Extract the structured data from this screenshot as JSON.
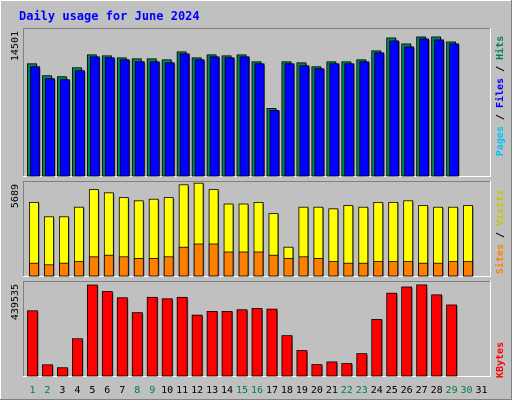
{
  "chart_data": {
    "type": "bar",
    "title": "Daily usage for June 2024",
    "x": [
      "1",
      "2",
      "3",
      "4",
      "5",
      "6",
      "7",
      "8",
      "9",
      "10",
      "11",
      "12",
      "13",
      "14",
      "15",
      "16",
      "17",
      "18",
      "19",
      "20",
      "21",
      "22",
      "23",
      "24",
      "25",
      "26",
      "27",
      "28",
      "29",
      "30",
      "31"
    ],
    "weekend_days": [
      "1",
      "2",
      "8",
      "9",
      "15",
      "16",
      "22",
      "23",
      "29",
      "30"
    ],
    "panels": {
      "hits_files_pages": {
        "max_label": "14501",
        "ylim": [
          0,
          14501
        ],
        "side_label": [
          "Pages",
          "Files",
          "Hits"
        ],
        "series": [
          {
            "key": "hits",
            "values": [
              11300,
              10100,
              10000,
              10900,
              12200,
              12100,
              11900,
              11800,
              11800,
              11700,
              12500,
              11900,
              12200,
              12100,
              12200,
              11500,
              6800,
              11500,
              11400,
              11000,
              11500,
              11500,
              11700,
              12600,
              13900,
              13300,
              14000,
              14000,
              13500,
              null,
              null
            ]
          },
          {
            "key": "files",
            "values": [
              11000,
              9800,
              9700,
              10600,
              12000,
              11900,
              11700,
              11500,
              11500,
              11400,
              12300,
              11700,
              12000,
              11900,
              12000,
              11300,
              6600,
              11300,
              11100,
              10800,
              11300,
              11300,
              11500,
              12400,
              13600,
              13000,
              13800,
              13700,
              13300,
              null,
              null
            ]
          },
          {
            "key": "pages",
            "values": [
              6000,
              5400,
              5300,
              5800,
              6500,
              6400,
              6300,
              6200,
              6200,
              6200,
              6600,
              6300,
              6400,
              6400,
              6400,
              6100,
              3600,
              6100,
              6000,
              5800,
              6100,
              6100,
              6200,
              6700,
              7400,
              7100,
              7500,
              7400,
              7200,
              null,
              null
            ]
          }
        ]
      },
      "visits_sites": {
        "max_label": "5689",
        "ylim": [
          0,
          5689
        ],
        "side_label": [
          "Sites",
          "Visits"
        ],
        "series": [
          {
            "key": "visits",
            "values": [
              4600,
              3700,
              3700,
              4300,
              5400,
              5200,
              4900,
              4700,
              4800,
              4900,
              5700,
              5800,
              5400,
              4500,
              4500,
              4600,
              3900,
              1800,
              4300,
              4300,
              4200,
              4400,
              4300,
              4600,
              4600,
              4700,
              4400,
              4300,
              4300,
              4400,
              null
            ]
          },
          {
            "key": "sites",
            "values": [
              800,
              700,
              800,
              900,
              1200,
              1300,
              1200,
              1100,
              1100,
              1200,
              1800,
              2000,
              2000,
              1500,
              1500,
              1500,
              1300,
              1100,
              1200,
              1100,
              900,
              800,
              800,
              900,
              900,
              900,
              800,
              800,
              900,
              900,
              null
            ]
          }
        ]
      },
      "kbytes": {
        "max_label": "439535",
        "ylim": [
          0,
          439535
        ],
        "side_label": [
          "KBytes"
        ],
        "series": [
          {
            "key": "kbytes",
            "values": [
              315000,
              54000,
              40000,
              180000,
              439535,
              408000,
              378000,
              306000,
              380000,
              373000,
              380000,
              294000,
              312000,
              312000,
              320000,
              326000,
              323000,
              195000,
              123000,
              55000,
              68000,
              60000,
              108000,
              273000,
              400000,
              430000,
              440000,
              392000,
              343000,
              null,
              null
            ]
          }
        ]
      }
    },
    "colors": {
      "background": "#c0c0c0",
      "title": "#0000ff",
      "hits": "#00805c",
      "files": "#0000ff",
      "pages": "#00c0ff",
      "visits": "#ffff00",
      "sites": "#ff8000",
      "kbytes": "#ff0000",
      "weekday_label": "#000000",
      "weekend_label": "#008040"
    }
  }
}
